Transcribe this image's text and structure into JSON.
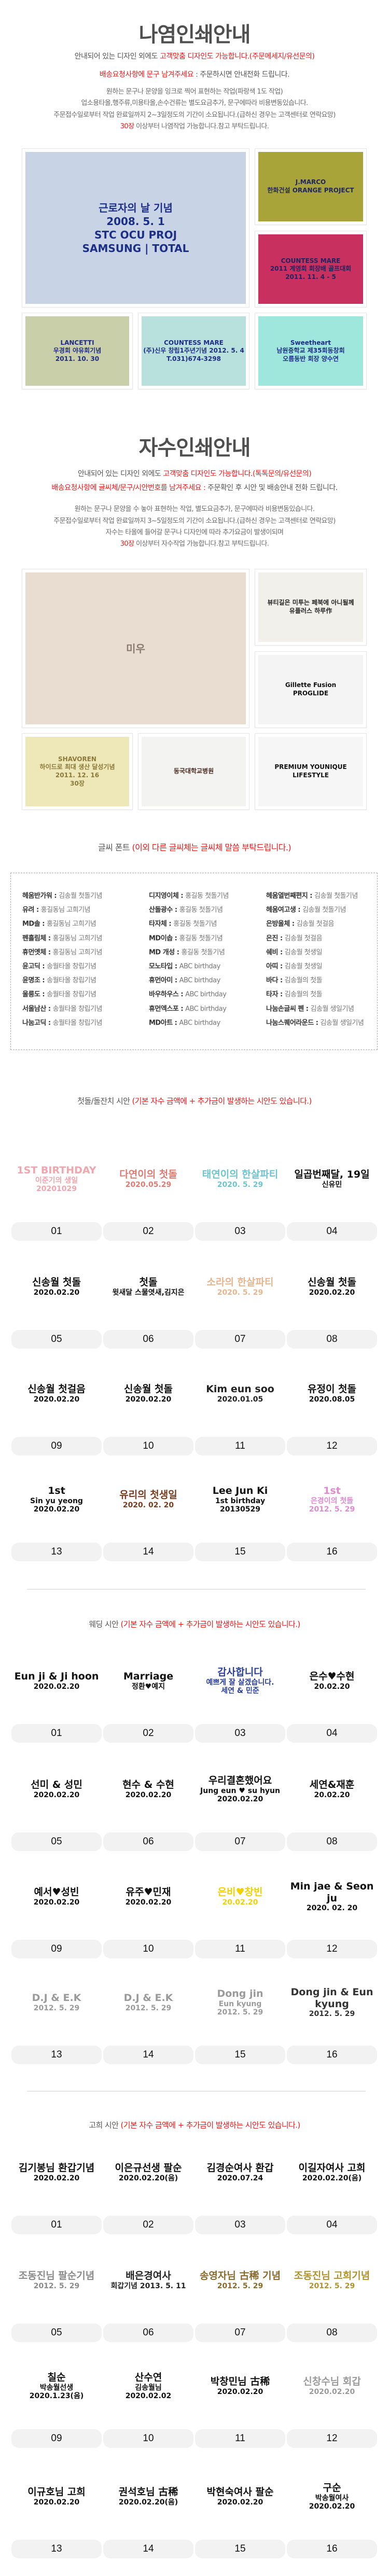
{
  "nayeom": {
    "title": "나염인쇄안내",
    "line1": {
      "a": "안내되어 있는 디자인 외에도 ",
      "b": "고객맞춤 디자인도 가능합니다.(주문메세지/유선문의)"
    },
    "line2": {
      "a": "배송요청사항에 문구 남겨주세요",
      "b": " : 주문하시면 안내전화 드립니다."
    },
    "line3": "원하는 문구나 문양을 잉크로 찍어 표현하는 작업(파랑색 1도 작업)",
    "line4": "업소용타올,행주류,미용타올,손수건류는 별도요금추가, 문구에따라 비용변동있습니다.",
    "line5": "주문접수일로부터 작업 완료일까지 2~3일정도의 기간이 소요됩니다.(급하신 경우는 고객센터로 연락요망)",
    "line6": {
      "a": "30장",
      "b": " 이상부터 나염작업 가능합니다.참고 부탁드립니다."
    },
    "photos": [
      {
        "lines": [
          "근로자의 날 기념",
          "2008. 5. 1",
          "STC OCU PROJ",
          "SAMSUNG | TOTAL"
        ],
        "bg": "#c9d3e6",
        "fg": "#1c2f86"
      },
      {
        "lines": [
          "J.MARCO",
          "한화건설 ORANGE PROJECT"
        ],
        "bg": "#a9a43a",
        "fg": "#1e2560"
      },
      {
        "lines": [
          "COUNTESS MARE",
          "2011 계영회 회장배 골프대회",
          "2011. 11. 4 - 5"
        ],
        "bg": "#c7305f",
        "fg": "#1e2560"
      },
      {
        "lines": [
          "LANCETTI",
          "우경회 야유회기념",
          "2011. 10. 30"
        ],
        "bg": "#c9cfa8",
        "fg": "#1e2b86"
      },
      {
        "lines": [
          "COUNTESS MARE",
          "(주)신우 창립1주년기념 2012. 5. 4",
          "T.031)674-3298"
        ],
        "bg": "#b8e0dc",
        "fg": "#1e2b86"
      },
      {
        "lines": [
          "Sweetheart",
          "남원중학교 제35회동창회",
          "오름동반 회장 양수연"
        ],
        "bg": "#9fe6dc",
        "fg": "#1e2b86"
      }
    ]
  },
  "jasu": {
    "title": "자수인쇄안내",
    "line1": {
      "a": "안내되어 있는 디자인 외에도 ",
      "b": "고객맞춤 디자인도 가능합니다.(톡톡문의/유선문의)"
    },
    "line2": {
      "a": "배송요청사항에 글씨체/문구/시안번호를 남겨주세요 : ",
      "b": "주문확인 후 시안 및 배송안내 전화 드립니다."
    },
    "line3": "원하는 문구나 문양을 수 놓아 표현하는 작업, 별도요금추가, 문구에따라 비용변동있습니다.",
    "line4": "주문접수일로부터 작업 완료일까지 3~5일정도의 기간이 소요됩니다.(급하신 경우는 고객센터로 연락요망)",
    "line5": "자수는 타올에 들어갈 문구나 디자인에 따라 추가요금이 발생이되며",
    "line6": {
      "a": "30장",
      "b": " 이상부터 자수작업 가능합니다.참고 부탁드립니다."
    },
    "photos": [
      {
        "lines": [
          "미우"
        ],
        "bg": "#e8ddd0",
        "fg": "#8a7b70"
      },
      {
        "lines": [
          "뷰티길은 미투는 페북에 아니될께",
          "유플러스 하루作"
        ],
        "bg": "#f1f0ea",
        "fg": "#222"
      },
      {
        "lines": [
          "Gillette Fusion",
          "PROGLIDE"
        ],
        "bg": "#f4f4f4",
        "fg": "#111"
      },
      {
        "lines": [
          "SHAVOREN",
          "하이드로 최대 생산 달성기념",
          "2011. 12. 16",
          "30장"
        ],
        "bg": "#eee7b8",
        "fg": "#8a7a3a"
      },
      {
        "lines": [
          "동국대학교병원"
        ],
        "bg": "#f3f3f1",
        "fg": "#4a2a20"
      },
      {
        "lines": [
          "PREMIUM YOUNIQUE LIFESTYLE"
        ],
        "bg": "#f6f6f6",
        "fg": "#111"
      }
    ]
  },
  "fonts": {
    "heading": {
      "a": "글씨 폰트 ",
      "b": "(이외 다른 글씨체는 글씨체 말씀 부탁드립니다.)"
    },
    "columns": [
      [
        {
          "name": "헤움반가워 : ",
          "sample": "김송월 첫돌기념"
        },
        {
          "name": "유려 : ",
          "sample": "홍길동님 고희기념"
        },
        {
          "name": "MD솔 : ",
          "sample": "홍길동님 고희기념"
        },
        {
          "name": "펜흘림체 : ",
          "sample": "홍길동님 고희기념"
        },
        {
          "name": "휴먼옛체 : ",
          "sample": "홍길동님 고희기념"
        },
        {
          "name": "윤고딕 : ",
          "sample": "송월타올 창립기념"
        },
        {
          "name": "윤명조 : ",
          "sample": "송월타올 창립기념"
        },
        {
          "name": "울릉도 : ",
          "sample": "송월타올 창립기념"
        },
        {
          "name": "서울남산 : ",
          "sample": "송월타올 창립기념"
        },
        {
          "name": "나눔고딕 : ",
          "sample": "송월타올 창립기념"
        }
      ],
      [
        {
          "name": "디지영이체 : ",
          "sample": "홍길동 첫돌기념"
        },
        {
          "name": "산돌광수 : ",
          "sample": "홍길동 첫돌기념"
        },
        {
          "name": "타자체 : ",
          "sample": "홍길동 첫돌기념"
        },
        {
          "name": "MD이솝 : ",
          "sample": "홍길동 첫돌기념"
        },
        {
          "name": "MD 개성 : ",
          "sample": "홍길동 첫돌기념"
        },
        {
          "name": "모노타입 : ",
          "sample": "ABC birthday"
        },
        {
          "name": "휴먼아미 : ",
          "sample": "ABC birthday"
        },
        {
          "name": "바우하우스 : ",
          "sample": "ABC birthday"
        },
        {
          "name": "휴먼엑스포 : ",
          "sample": "ABC birthday"
        },
        {
          "name": "MD아트 : ",
          "sample": "ABC birthday"
        }
      ],
      [
        {
          "name": "헤움열번째편지 : ",
          "sample": "김송월 첫돌기념"
        },
        {
          "name": "헤움여고생 : ",
          "sample": "김송월 첫돌기념"
        },
        {
          "name": "은방울체 : ",
          "sample": "김송월 첫걸음"
        },
        {
          "name": "은진 : ",
          "sample": "김송월 첫걸음"
        },
        {
          "name": "쉐비 : ",
          "sample": "김송월 첫생일"
        },
        {
          "name": "아띠 : ",
          "sample": "김송월 첫생일"
        },
        {
          "name": "바다 : ",
          "sample": "김송월의 첫돌"
        },
        {
          "name": "타자 : ",
          "sample": "김송월의 첫돌"
        },
        {
          "name": "나눔손글씨 펜 : ",
          "sample": "김송월 생일기념"
        },
        {
          "name": "나눔스퀘어라운드 : ",
          "sample": "김송월 생일기념"
        }
      ]
    ]
  },
  "grids": [
    {
      "heading": {
        "a": "첫돌/돌잔치 시안 ",
        "b": "(기본 자수 금액에 + 추가금이 발생하는 시안도 있습니다.)"
      },
      "items": [
        {
          "n": "01",
          "lines": [
            "1ST BIRTHDAY",
            "이준기의 생일",
            "20201029"
          ],
          "color": "#f2a5ad"
        },
        {
          "n": "02",
          "lines": [
            "다연이의 첫돌",
            "2020.05.29"
          ],
          "color": "#e07a70"
        },
        {
          "n": "03",
          "lines": [
            "태연이의 한살파티",
            "2020. 5. 29"
          ],
          "color": "#6cc4cf"
        },
        {
          "n": "04",
          "lines": [
            "일곱번째달, 19일",
            "신유민"
          ],
          "color": "#111111"
        },
        {
          "n": "05",
          "lines": [
            "신송월 첫돌",
            "2020.02.20"
          ],
          "color": "#111111"
        },
        {
          "n": "06",
          "lines": [
            "첫돌",
            "윗새달 스물엿새,김지은"
          ],
          "color": "#111111"
        },
        {
          "n": "07",
          "lines": [
            "소라의 한살파티",
            "2020. 5. 29"
          ],
          "color": "#e8b48e"
        },
        {
          "n": "08",
          "lines": [
            "신송월 첫돌",
            "2020.02.20"
          ],
          "color": "#111111"
        },
        {
          "n": "09",
          "lines": [
            "신송월 첫걸음",
            "2020.02.20"
          ],
          "color": "#111111"
        },
        {
          "n": "10",
          "lines": [
            "신송월 첫돌",
            "2020.02.20"
          ],
          "color": "#111111"
        },
        {
          "n": "11",
          "lines": [
            "Kim eun soo",
            "2020.01.05"
          ],
          "color": "#222222"
        },
        {
          "n": "12",
          "lines": [
            "유정이 첫돌",
            "2020.08.05"
          ],
          "color": "#111111"
        },
        {
          "n": "13",
          "lines": [
            "1st",
            "Sin yu yeong",
            "2020.02.20"
          ],
          "color": "#111111"
        },
        {
          "n": "14",
          "lines": [
            "유리의 첫생일",
            "2020. 02. 20"
          ],
          "color": "#7a3b1e"
        },
        {
          "n": "15",
          "lines": [
            "Lee Jun Ki",
            "1st birthday 20130529"
          ],
          "color": "#111111"
        },
        {
          "n": "16",
          "lines": [
            "1st",
            "은경이의 첫돌",
            "2012. 5. 29"
          ],
          "color": "#e08ad0"
        }
      ]
    },
    {
      "heading": {
        "a": "웨딩 시안 ",
        "b": "(기본 자수 금액에 + 추가금이 발생하는 시안도 있습니다.)"
      },
      "items": [
        {
          "n": "01",
          "lines": [
            "Eun ji & Ji hoon",
            "2020.02.20"
          ],
          "color": "#111111"
        },
        {
          "n": "02",
          "lines": [
            "Marriage",
            "정환♥예지"
          ],
          "color": "#111111"
        },
        {
          "n": "03",
          "lines": [
            "감사합니다",
            "예쁘게 잘 살겠습니다.",
            "세연 & 민준"
          ],
          "color": "#2a3f9c"
        },
        {
          "n": "04",
          "lines": [
            "은수♥수현",
            "20.02.20"
          ],
          "color": "#111111"
        },
        {
          "n": "05",
          "lines": [
            "선미 & 성민",
            "2020.02.20"
          ],
          "color": "#111111"
        },
        {
          "n": "06",
          "lines": [
            "현수 & 수현",
            "2020.02.20"
          ],
          "color": "#111111"
        },
        {
          "n": "07",
          "lines": [
            "우리결혼했어요",
            "Jung eun ♥ su hyun",
            "2020.02.20"
          ],
          "color": "#111111"
        },
        {
          "n": "08",
          "lines": [
            "세연&재훈",
            "20.02.20"
          ],
          "color": "#111111"
        },
        {
          "n": "09",
          "lines": [
            "예서♥성빈",
            "2020.02.20"
          ],
          "color": "#111111"
        },
        {
          "n": "10",
          "lines": [
            "유주♥민재",
            "2020.02.20"
          ],
          "color": "#111111"
        },
        {
          "n": "11",
          "lines": [
            "은비♥창빈",
            "20.02.20"
          ],
          "color": "#f2d100"
        },
        {
          "n": "12",
          "lines": [
            "Min jae & Seon ju",
            "2020. 02. 20"
          ],
          "color": "#111111"
        },
        {
          "n": "13",
          "lines": [
            "D.J & E.K",
            "2012. 5. 29"
          ],
          "color": "#9a9a9a"
        },
        {
          "n": "14",
          "lines": [
            "D.J & E.K",
            "2012. 5. 29"
          ],
          "color": "#9a9a9a"
        },
        {
          "n": "15",
          "lines": [
            "Dong jin",
            "Eun kyung",
            "2012. 5. 29"
          ],
          "color": "#9a9a9a"
        },
        {
          "n": "16",
          "lines": [
            "Dong jin & Eun kyung",
            "2012. 5. 29"
          ],
          "color": "#333333"
        }
      ]
    },
    {
      "heading": {
        "a": "고희 시안 ",
        "b": "(기본 자수 금액에 + 추가금이 발생하는 시안도 있습니다.)"
      },
      "items": [
        {
          "n": "01",
          "lines": [
            "김기봉님 환갑기념",
            "2020.02.20"
          ],
          "color": "#111111"
        },
        {
          "n": "02",
          "lines": [
            "이은규선생 팔순",
            "2020.02.20(음)"
          ],
          "color": "#111111"
        },
        {
          "n": "03",
          "lines": [
            "김경순여사 환갑",
            "2020.07.24"
          ],
          "color": "#111111"
        },
        {
          "n": "04",
          "lines": [
            "이길자여사 고희",
            "2020.02.20(음)"
          ],
          "color": "#111111"
        },
        {
          "n": "05",
          "lines": [
            "조동진님 팔순기념",
            "2012. 5. 29"
          ],
          "color": "#8a8a8a"
        },
        {
          "n": "06",
          "lines": [
            "배은경여사",
            "회갑기념 2013. 5. 11"
          ],
          "color": "#222222"
        },
        {
          "n": "07",
          "lines": [
            "송영자님 古稀 기념",
            "2012. 5. 29"
          ],
          "color": "#8a6a2a"
        },
        {
          "n": "08",
          "lines": [
            "조동진님 고희기념",
            "2012. 5. 29"
          ],
          "color": "#b0922a"
        },
        {
          "n": "09",
          "lines": [
            "칠순",
            "박송월선생",
            "2020.1.23(음)"
          ],
          "color": "#111111"
        },
        {
          "n": "10",
          "lines": [
            "산수연",
            "김송월님",
            "2020.02.02"
          ],
          "color": "#111111"
        },
        {
          "n": "11",
          "lines": [
            "박창민님 古稀",
            "2020.02.20"
          ],
          "color": "#111111"
        },
        {
          "n": "12",
          "lines": [
            "신창수님 회갑",
            "2020.02.20"
          ],
          "color": "#9a9a9a"
        },
        {
          "n": "13",
          "lines": [
            "이규호님 고희",
            "2020.02.20"
          ],
          "color": "#111111"
        },
        {
          "n": "14",
          "lines": [
            "권석호님 古稀",
            "2020.02.20(음)"
          ],
          "color": "#111111"
        },
        {
          "n": "15",
          "lines": [
            "박현숙여사 팔순",
            "2020.02.20"
          ],
          "color": "#111111"
        },
        {
          "n": "16",
          "lines": [
            "구순",
            "박송월여사",
            "2020.02.20"
          ],
          "color": "#111111"
        }
      ]
    }
  ]
}
